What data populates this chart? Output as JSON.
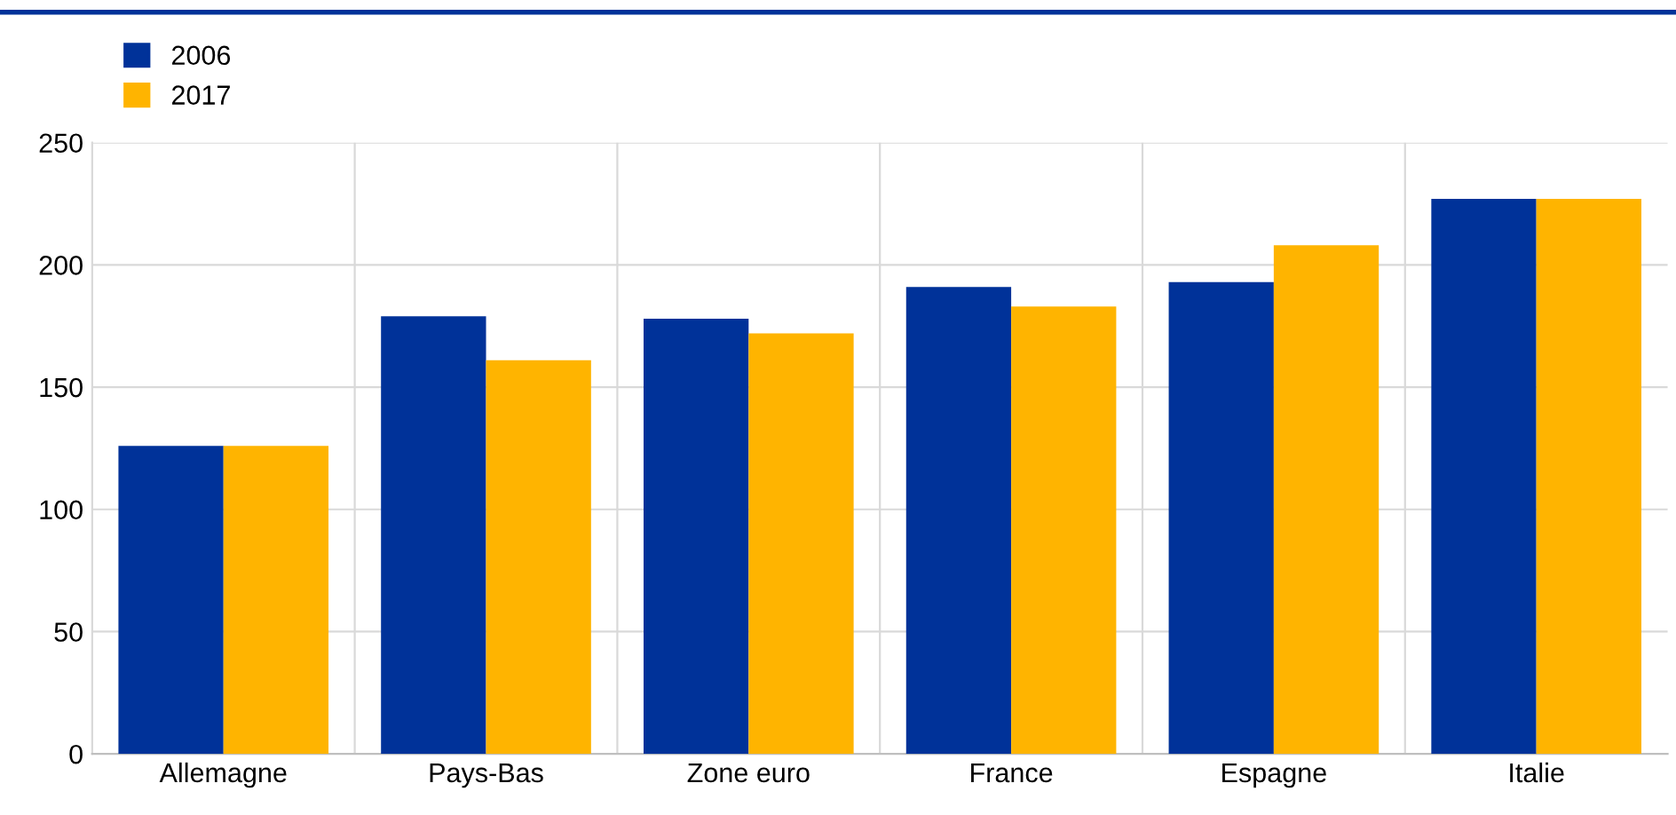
{
  "chart_data": {
    "type": "bar",
    "categories": [
      "Allemagne",
      "Pays-Bas",
      "Zone euro",
      "France",
      "Espagne",
      "Italie"
    ],
    "series": [
      {
        "name": "2006",
        "color": "#003299",
        "values": [
          126,
          179,
          178,
          191,
          193,
          227
        ]
      },
      {
        "name": "2017",
        "color": "#ffb400",
        "values": [
          126,
          161,
          172,
          183,
          208,
          227
        ]
      }
    ],
    "ylim": [
      0,
      250
    ],
    "yticks": [
      0,
      50,
      100,
      150,
      200,
      250
    ],
    "grid": true,
    "legend": "top left"
  }
}
